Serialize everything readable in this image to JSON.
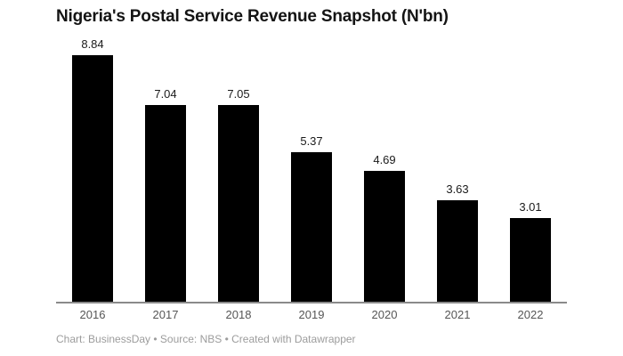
{
  "title": "Nigeria's Postal Service Revenue Snapshot (N'bn)",
  "footer": {
    "text": "Chart: BusinessDay • Source: NBS • Created with Datawrapper"
  },
  "chart_data": {
    "type": "bar",
    "title": "Nigeria's Postal Service Revenue Snapshot (N'bn)",
    "categories": [
      "2016",
      "2017",
      "2018",
      "2019",
      "2020",
      "2021",
      "2022"
    ],
    "values": [
      8.84,
      7.04,
      7.05,
      5.37,
      4.69,
      3.63,
      3.01
    ],
    "value_label_decimals": 2,
    "xlabel": "",
    "ylabel": "",
    "ylim": [
      0,
      8.84
    ],
    "grid": false,
    "legend": false,
    "value_labels_shown": true,
    "bar_color": "#000000",
    "axis_color": "#8a8a8a",
    "value_label_color": "#1a1a1a",
    "tick_label_color": "#565656",
    "footer_color": "#9c9c9c"
  }
}
